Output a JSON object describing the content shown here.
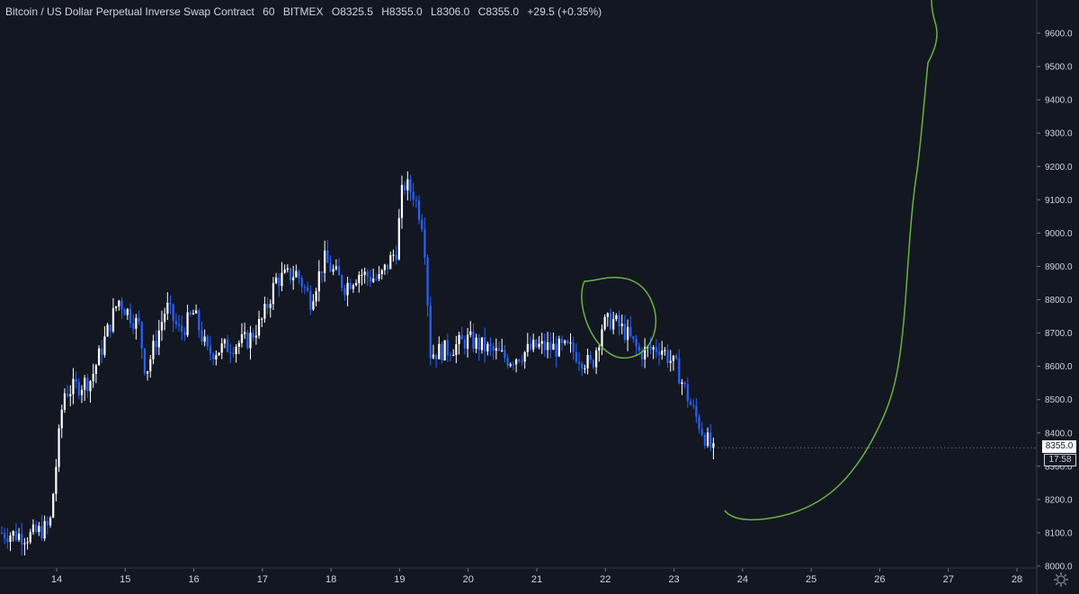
{
  "header": {
    "symbol": "Bitcoin / US Dollar Perpetual Inverse Swap Contract",
    "interval": "60",
    "exchange": "BITMEX",
    "open_label": "O",
    "open": "8325.5",
    "high_label": "H",
    "high": "8355.0",
    "low_label": "L",
    "low": "8306.0",
    "close_label": "C",
    "close": "8355.0",
    "change": "+29.5 (+0.35%)"
  },
  "price_tag": "8355.0",
  "countdown": "17:58",
  "colors": {
    "background": "#131722",
    "up_candle": "#ffffff",
    "down_candle": "#2962ff",
    "drawing": "#6cb33f"
  },
  "chart_data": {
    "type": "candlestick",
    "title": "",
    "y_axis": {
      "range": [
        8000,
        9700
      ],
      "ticks": [
        "8000.0",
        "8100.0",
        "8200.0",
        "8300.0",
        "8400.0",
        "8500.0",
        "8600.0",
        "8700.0",
        "8800.0",
        "8900.0",
        "9000.0",
        "9100.0",
        "9200.0",
        "9300.0",
        "9400.0",
        "9500.0",
        "9600.0"
      ]
    },
    "x_axis": {
      "range": [
        13.2,
        28.5
      ],
      "ticks": [
        "14",
        "15",
        "16",
        "17",
        "18",
        "19",
        "20",
        "21",
        "22",
        "23",
        "24",
        "25",
        "26",
        "27",
        "28"
      ]
    },
    "grid": false,
    "price_path": [
      [
        13.2,
        8100
      ],
      [
        13.6,
        8090
      ],
      [
        13.9,
        8120
      ],
      [
        14.0,
        8320
      ],
      [
        14.1,
        8520
      ],
      [
        14.5,
        8560
      ],
      [
        14.7,
        8680
      ],
      [
        14.9,
        8800
      ],
      [
        15.2,
        8720
      ],
      [
        15.3,
        8580
      ],
      [
        15.6,
        8780
      ],
      [
        15.8,
        8700
      ],
      [
        16.0,
        8760
      ],
      [
        16.2,
        8640
      ],
      [
        16.5,
        8660
      ],
      [
        16.8,
        8680
      ],
      [
        17.0,
        8740
      ],
      [
        17.2,
        8860
      ],
      [
        17.5,
        8880
      ],
      [
        17.7,
        8800
      ],
      [
        17.9,
        8920
      ],
      [
        18.2,
        8840
      ],
      [
        18.4,
        8880
      ],
      [
        18.7,
        8860
      ],
      [
        18.95,
        8950
      ],
      [
        19.05,
        9150
      ],
      [
        19.2,
        9120
      ],
      [
        19.35,
        9020
      ],
      [
        19.45,
        8640
      ],
      [
        19.7,
        8650
      ],
      [
        20.0,
        8680
      ],
      [
        20.3,
        8650
      ],
      [
        20.6,
        8620
      ],
      [
        21.0,
        8660
      ],
      [
        21.5,
        8650
      ],
      [
        21.8,
        8600
      ],
      [
        21.95,
        8720
      ],
      [
        22.1,
        8740
      ],
      [
        22.3,
        8700
      ],
      [
        22.5,
        8640
      ],
      [
        22.8,
        8660
      ],
      [
        23.05,
        8590
      ],
      [
        23.25,
        8480
      ],
      [
        23.45,
        8390
      ],
      [
        23.6,
        8330
      ]
    ],
    "annotations": [
      "circle around Dec 22 consolidation",
      "hand-drawn projection curve rising toward 9600+"
    ]
  }
}
